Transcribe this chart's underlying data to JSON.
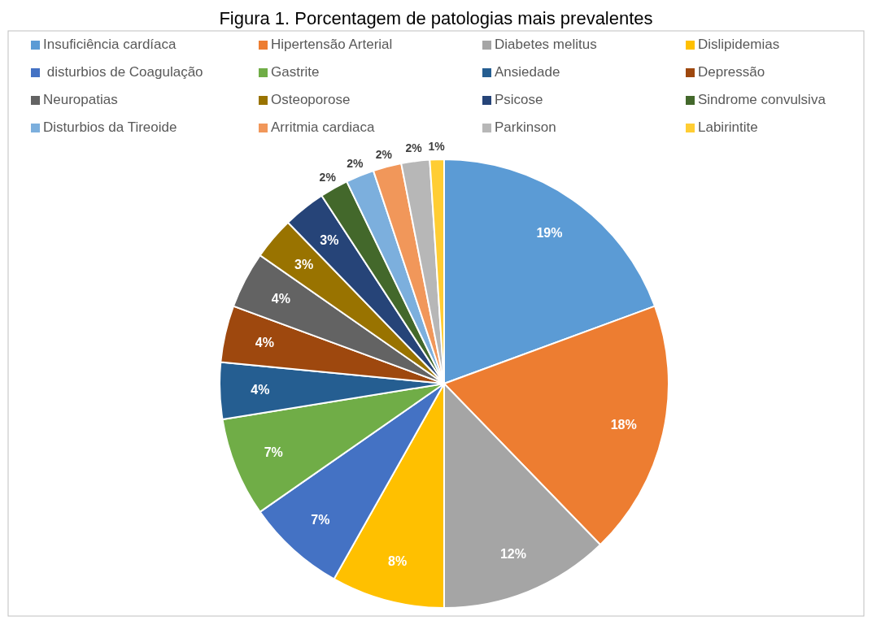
{
  "chart_data": {
    "type": "pie",
    "title": "Figura 1. Porcentagem de patologias mais prevalentes",
    "categories": [
      "Insuficiência cardíaca",
      "Hipertensão Arterial",
      "Diabetes melitus",
      "Dislipidemias",
      " disturbios de Coagulação",
      "Gastrite",
      "Ansiedade",
      "Depressão",
      "Neuropatias",
      "Osteoporose",
      "Psicose",
      "Sindrome convulsiva",
      "Disturbios da Tireoide",
      "Arritmia cardiaca",
      "Parkinson",
      "Labirintite"
    ],
    "values": [
      19,
      18,
      12,
      8,
      7,
      7,
      4,
      4,
      4,
      3,
      3,
      2,
      2,
      2,
      2,
      1
    ],
    "value_labels": [
      "19%",
      "18%",
      "12%",
      "8%",
      "7%",
      "7%",
      "4%",
      "4%",
      "4%",
      "3%",
      "3%",
      "2%",
      "2%",
      "2%",
      "2%",
      "1%"
    ],
    "colors": [
      "#5b9bd5",
      "#ed7d31",
      "#a5a5a5",
      "#ffc000",
      "#4472c4",
      "#70ad47",
      "#255e91",
      "#9e480e",
      "#636363",
      "#997300",
      "#264478",
      "#43682b",
      "#7cafdd",
      "#f1975a",
      "#b7b7b7",
      "#ffcd33"
    ],
    "legend": "top"
  }
}
